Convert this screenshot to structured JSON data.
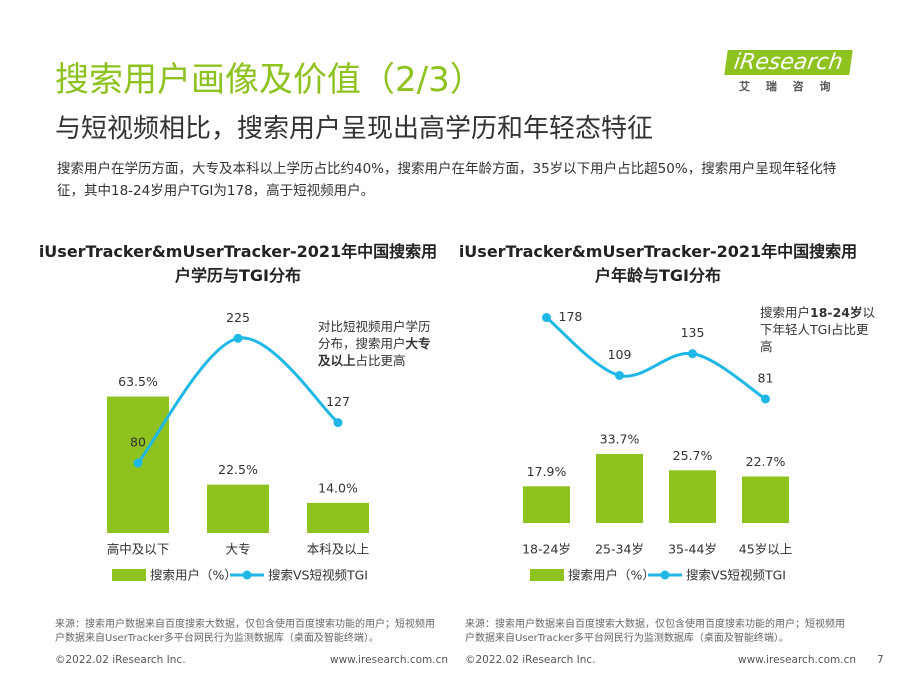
{
  "header": {
    "title": "搜索用户画像及价值（2/3）",
    "subtitle": "与短视频相比，搜索用户呈现出高学历和年轻态特征",
    "summary": "搜索用户在学历方面，大专及本科以上学历占比约40%，搜索用户在年龄方面，35岁以下用户占比超50%，搜索用户呈现年轻化特征，其中18-24岁用户TGI为178，高于短视频用户。",
    "logo": "iResearch",
    "logo_cn": "艾 瑞 咨 询"
  },
  "chart_data": [
    {
      "type": "bar",
      "title": "iUserTracker&mUserTracker-2021年中国搜索用户学历与TGI分布",
      "categories": [
        "高中及以下",
        "大专",
        "本科及以上"
      ],
      "series": [
        {
          "name": "搜索用户（%）",
          "color": "#8dc21f",
          "values": [
            63.5,
            22.5,
            14.0
          ],
          "value_labels": [
            "63.5%",
            "22.5%",
            "14.0%"
          ]
        },
        {
          "name": "搜索VS短视频TGI",
          "color": "#1fb8e6",
          "values": [
            80,
            225,
            127
          ],
          "axis": "y2"
        }
      ],
      "annotation": [
        "对比短视频用户学历分布，搜索用户",
        "大专及以上",
        "占比更高"
      ],
      "source": "来源：搜索用户数据来自百度搜索大数据，仅包含使用百度搜索功能的用户；短视频用户数据来自UserTracker多平台网民行为监测数据库（桌面及智能终端）。"
    },
    {
      "type": "bar",
      "title": "iUserTracker&mUserTracker-2021年中国搜索用户年龄与TGI分布",
      "categories": [
        "18-24岁",
        "25-34岁",
        "35-44岁",
        "45岁以上"
      ],
      "series": [
        {
          "name": "搜索用户（%）",
          "color": "#8dc21f",
          "values": [
            17.9,
            33.7,
            25.7,
            22.7
          ],
          "value_labels": [
            "17.9%",
            "33.7%",
            "25.7%",
            "22.7%"
          ]
        },
        {
          "name": "搜索VS短视频TGI",
          "color": "#1fb8e6",
          "values": [
            178,
            109,
            135,
            81
          ],
          "axis": "y2"
        }
      ],
      "annotation": [
        "搜索用户",
        "18-24岁",
        "以下年轻人TGI占比更高"
      ],
      "source": "来源：搜索用户数据来自百度搜索大数据，仅包含使用百度搜索功能的用户；短视频用户数据来自UserTracker多平台网民行为监测数据库（桌面及智能终端）。"
    }
  ],
  "footer": {
    "copyright": [
      "©2022.02 iResearch Inc.",
      "©2022.02 iResearch Inc."
    ],
    "website": [
      "www.iresearch.com.cn",
      "www.iresearch.com.cn"
    ],
    "page": "7"
  }
}
